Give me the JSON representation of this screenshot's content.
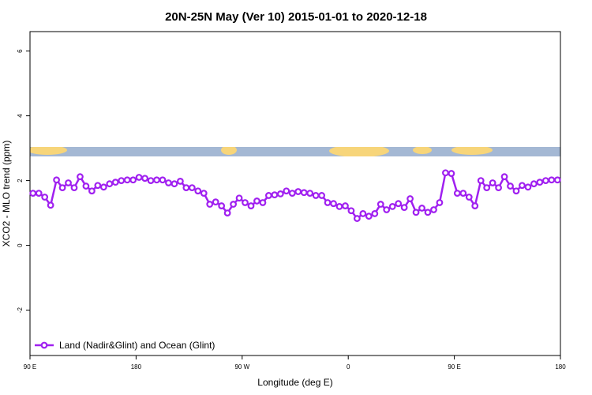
{
  "chart_data": {
    "type": "line",
    "title": "20N-25N May (Ver 10)   2015-01-01 to 2020-12-18",
    "x_label": "Longitude (deg E)",
    "y_label": "XCO2 - MLO trend (ppm)",
    "xlim": [
      90,
      540
    ],
    "ylim": [
      -3.4,
      6.6
    ],
    "xticks": [
      {
        "value": 90,
        "label": "90 E"
      },
      180,
      {
        "value": 270,
        "label": "90 W"
      },
      {
        "value": 360,
        "label": "0"
      },
      {
        "value": 450,
        "label": "90 E"
      },
      {
        "value": 540,
        "label": "180"
      }
    ],
    "yticks": [
      -2,
      0,
      2,
      4,
      6
    ],
    "legend": "bottom-left",
    "x": [
      92.5,
      97.5,
      102.5,
      107.5,
      112.5,
      117.5,
      122.5,
      127.5,
      132.5,
      137.5,
      142.5,
      147.5,
      152.5,
      157.5,
      162.5,
      167.5,
      172.5,
      177.5,
      182.5,
      187.5,
      192.5,
      197.5,
      202.5,
      207.5,
      212.5,
      217.5,
      222.5,
      227.5,
      232.5,
      237.5,
      242.5,
      247.5,
      252.5,
      257.5,
      262.5,
      267.5,
      272.5,
      277.5,
      282.5,
      287.5,
      292.5,
      297.5,
      302.5,
      307.5,
      312.5,
      317.5,
      322.5,
      327.5,
      332.5,
      337.5,
      342.5,
      347.5,
      352.5,
      357.5,
      362.5,
      367.5,
      372.5,
      377.5,
      382.5,
      387.5,
      392.5,
      397.5,
      402.5,
      407.5,
      412.5,
      417.5,
      422.5,
      427.5,
      432.5,
      437.5,
      442.5,
      447.5,
      452.5,
      457.5,
      462.5,
      467.5,
      472.5,
      477.5,
      482.5,
      487.5,
      492.5,
      497.5,
      502.5,
      507.5,
      512.5,
      517.5,
      522.5,
      527.5,
      532.5,
      537.5
    ],
    "series": [
      {
        "name": "Land (Nadir&Glint) and Ocean (Glint)",
        "color": "#a020f0",
        "values": [
          1.61,
          1.61,
          1.49,
          1.24,
          2.02,
          1.78,
          1.93,
          1.78,
          2.12,
          1.83,
          1.68,
          1.85,
          1.8,
          1.9,
          1.95,
          2.0,
          2.02,
          2.02,
          2.1,
          2.07,
          2.0,
          2.02,
          2.02,
          1.93,
          1.9,
          1.98,
          1.78,
          1.78,
          1.68,
          1.61,
          1.27,
          1.34,
          1.22,
          1.0,
          1.27,
          1.46,
          1.32,
          1.22,
          1.37,
          1.32,
          1.54,
          1.56,
          1.59,
          1.68,
          1.61,
          1.66,
          1.63,
          1.61,
          1.54,
          1.54,
          1.32,
          1.29,
          1.2,
          1.22,
          1.07,
          0.83,
          0.98,
          0.9,
          0.98,
          1.27,
          1.1,
          1.2,
          1.29,
          1.17,
          1.44,
          1.02,
          1.15,
          1.02,
          1.1,
          1.32,
          2.24,
          2.22,
          1.61,
          1.61,
          1.49,
          1.22,
          2.0,
          1.78,
          1.93,
          1.78,
          2.12,
          1.83,
          1.68,
          1.85,
          1.8,
          1.9,
          1.95,
          2.0,
          2.02,
          2.02
        ]
      }
    ]
  }
}
